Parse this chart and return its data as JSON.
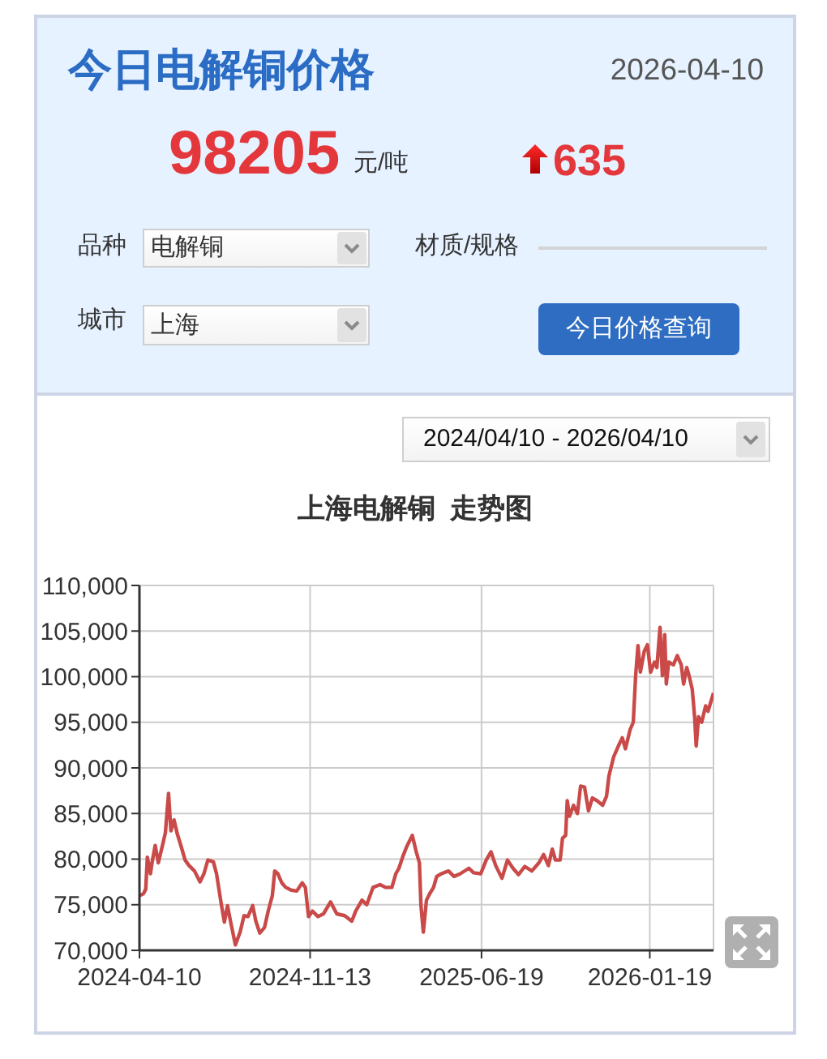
{
  "chart_data": {
    "type": "line",
    "title": "上海电解铜  走势图",
    "annotations": [
      "今日电解铜价格",
      "2026-04-10",
      "98205",
      "元/吨",
      "635",
      "品种",
      "电解铜",
      "材质/规格",
      "城市",
      "上海",
      "今日价格查询",
      "2024/04/10 - 2026/04/10"
    ],
    "x": [
      "2024-04-10",
      "2024-04-15",
      "2024-04-18",
      "2024-04-20",
      "2024-04-24",
      "2024-04-26",
      "2024-04-30",
      "2024-05-04",
      "2024-05-09",
      "2024-05-13",
      "2024-05-17",
      "2024-05-20",
      "2024-05-24",
      "2024-05-28",
      "2024-06-02",
      "2024-06-07",
      "2024-06-12",
      "2024-06-19",
      "2024-06-26",
      "2024-07-01",
      "2024-07-06",
      "2024-07-13",
      "2024-07-17",
      "2024-07-23",
      "2024-07-27",
      "2024-07-31",
      "2024-08-04",
      "2024-08-10",
      "2024-08-16",
      "2024-08-21",
      "2024-08-26",
      "2024-09-01",
      "2024-09-05",
      "2024-09-10",
      "2024-09-16",
      "2024-09-21",
      "2024-09-26",
      "2024-09-29",
      "2024-10-03",
      "2024-10-08",
      "2024-10-13",
      "2024-10-20",
      "2024-10-27",
      "2024-11-03",
      "2024-11-07",
      "2024-11-11",
      "2024-11-16",
      "2024-11-23",
      "2024-11-30",
      "2024-12-09",
      "2024-12-17",
      "2024-12-27",
      "2025-01-05",
      "2025-01-10",
      "2025-01-18",
      "2025-01-24",
      "2025-02-01",
      "2025-02-10",
      "2025-02-17",
      "2025-02-25",
      "2025-03-02",
      "2025-03-06",
      "2025-03-11",
      "2025-03-16",
      "2025-03-23",
      "2025-03-28",
      "2025-04-01",
      "2025-04-03",
      "2025-04-06",
      "2025-04-10",
      "2025-04-14",
      "2025-04-19",
      "2025-04-23",
      "2025-04-29",
      "2025-05-08",
      "2025-05-15",
      "2025-05-23",
      "2025-06-03",
      "2025-06-09",
      "2025-06-18",
      "2025-06-25",
      "2025-07-01",
      "2025-07-07",
      "2025-07-15",
      "2025-07-22",
      "2025-07-29",
      "2025-08-05",
      "2025-08-13",
      "2025-08-22",
      "2025-08-31",
      "2025-09-06",
      "2025-09-12",
      "2025-09-17",
      "2025-09-21",
      "2025-09-27",
      "2025-09-30",
      "2025-10-04",
      "2025-10-06",
      "2025-10-09",
      "2025-10-14",
      "2025-10-19",
      "2025-10-23",
      "2025-10-28",
      "2025-11-02",
      "2025-11-07",
      "2025-11-13",
      "2025-11-20",
      "2025-11-25",
      "2025-11-28",
      "2025-12-04",
      "2025-12-10",
      "2025-12-15",
      "2025-12-19",
      "2025-12-25",
      "2025-12-29",
      "2026-01-01",
      "2026-01-04",
      "2026-01-07",
      "2026-01-12",
      "2026-01-16",
      "2026-01-20",
      "2026-01-25",
      "2026-01-28",
      "2026-02-01",
      "2026-02-04",
      "2026-02-07",
      "2026-02-09",
      "2026-02-12",
      "2026-02-18",
      "2026-02-23",
      "2026-02-28",
      "2026-03-03",
      "2026-03-07",
      "2026-03-10",
      "2026-03-14",
      "2026-03-17",
      "2026-03-19",
      "2026-03-22",
      "2026-03-26",
      "2026-03-31",
      "2026-04-03",
      "2026-04-10"
    ],
    "values": [
      76000,
      76200,
      76700,
      80200,
      78400,
      79600,
      81500,
      79600,
      81400,
      82900,
      87200,
      83100,
      84300,
      82800,
      81400,
      79900,
      79300,
      78700,
      77500,
      78400,
      79900,
      79700,
      78400,
      75100,
      73100,
      74900,
      73100,
      70600,
      72000,
      73800,
      73700,
      74900,
      73200,
      71900,
      72500,
      74400,
      76000,
      78700,
      78400,
      77400,
      76900,
      76600,
      76500,
      77400,
      76900,
      73700,
      74300,
      73700,
      74000,
      75300,
      74000,
      73800,
      73200,
      74300,
      75500,
      75000,
      76900,
      77200,
      76900,
      76900,
      78400,
      79000,
      80300,
      81400,
      82600,
      80800,
      79600,
      74900,
      72000,
      75500,
      76200,
      76900,
      78100,
      78400,
      78700,
      78100,
      78400,
      79000,
      78500,
      78400,
      79900,
      80800,
      79300,
      77900,
      79900,
      79000,
      78300,
      79200,
      78700,
      79600,
      80500,
      79300,
      81100,
      79900,
      79900,
      82300,
      82600,
      86400,
      84700,
      85900,
      85000,
      88000,
      87900,
      85300,
      86700,
      86400,
      85900,
      86900,
      89100,
      91200,
      92400,
      93300,
      92100,
      94200,
      95000,
      100100,
      103400,
      100500,
      102800,
      103500,
      100500,
      101600,
      101000,
      105400,
      100100,
      104600,
      99200,
      101600,
      101300,
      102300,
      101300,
      99200,
      101000,
      100100,
      98600,
      95600,
      92400,
      95600,
      95000,
      96800,
      96200,
      98200
    ],
    "color": "#c94a48",
    "xlim": [
      "2024-04-10",
      "2026-04-10"
    ],
    "xticks": [
      "2024-04-10",
      "2024-11-13",
      "2025-06-19",
      "2026-01-19"
    ],
    "ylim": [
      70000,
      110000
    ],
    "yticks": [
      {
        "value": 70000,
        "label": "70,000"
      },
      {
        "value": 75000,
        "label": "75,000"
      },
      {
        "value": 80000,
        "label": "80,000"
      },
      {
        "value": 85000,
        "label": "85,000"
      },
      {
        "value": 90000,
        "label": "90,000"
      },
      {
        "value": 95000,
        "label": "95,000"
      },
      {
        "value": 100000,
        "label": "100,000"
      },
      {
        "value": 105000,
        "label": "105,000"
      },
      {
        "value": 110000,
        "label": "110,000"
      }
    ],
    "grid": true
  }
}
